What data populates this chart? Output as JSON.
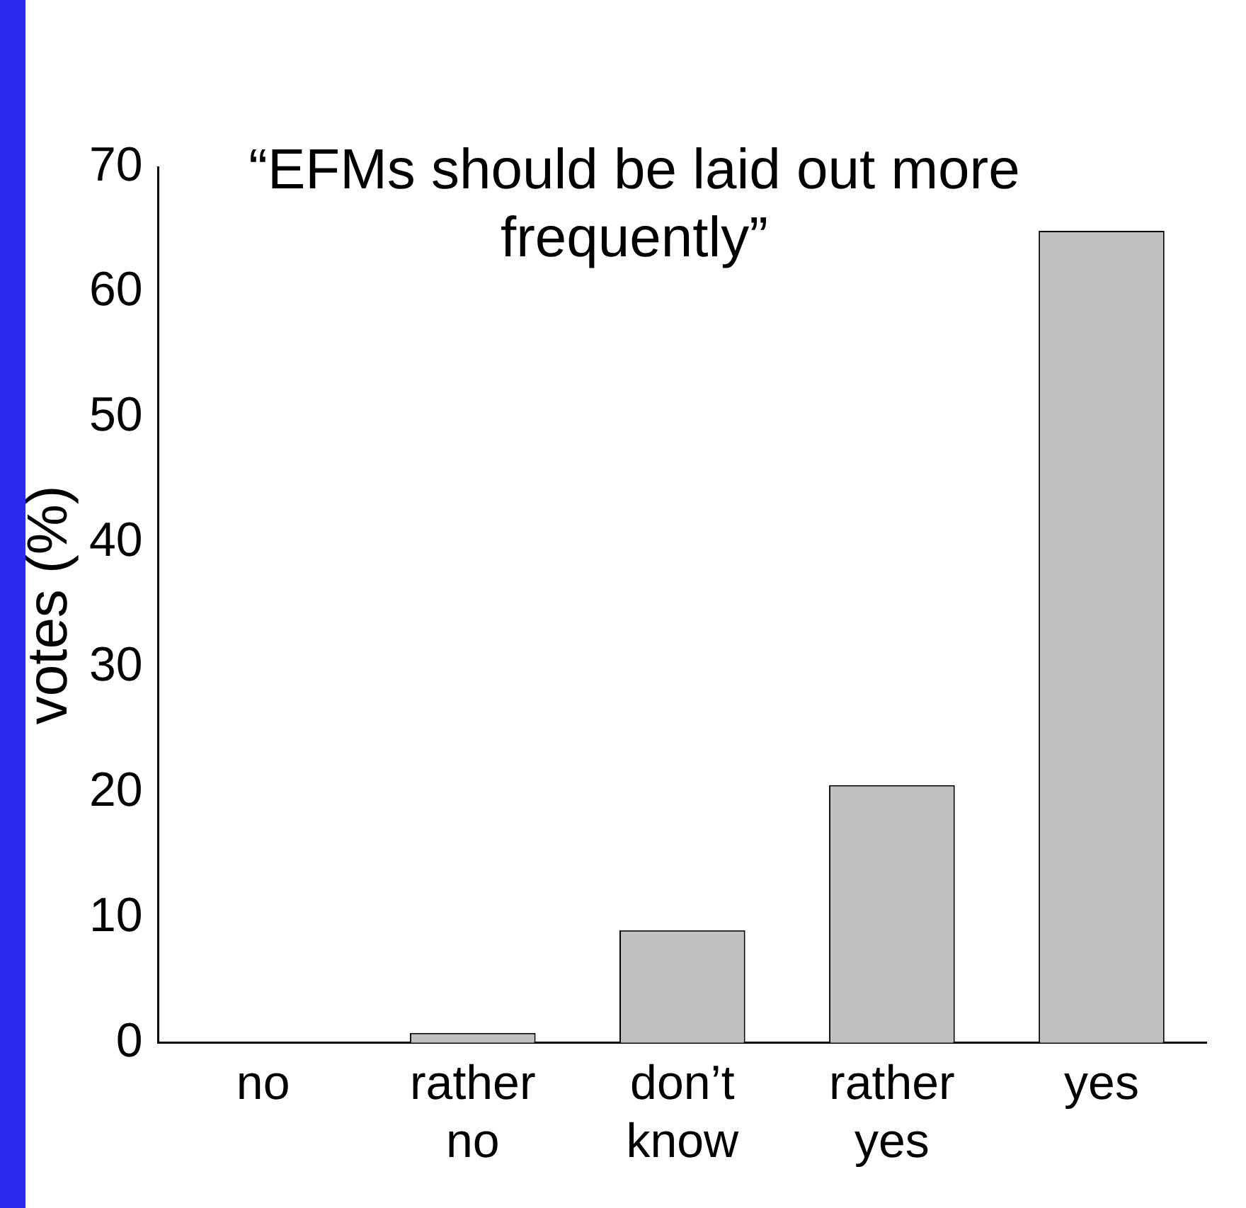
{
  "chart_data": {
    "type": "bar",
    "title": "“EFMs should be laid out more frequently”",
    "ylabel": "votes (%)",
    "categories": [
      "no",
      "rather no",
      "don’t know",
      "rather yes",
      "yes"
    ],
    "values": [
      0,
      0.8,
      9,
      20.6,
      64.9
    ],
    "color": "#c0c0c0",
    "ylim": [
      0,
      70
    ],
    "yticks": [
      0,
      10,
      20,
      30,
      40,
      50,
      60,
      70
    ],
    "grid": false,
    "legend": false
  }
}
